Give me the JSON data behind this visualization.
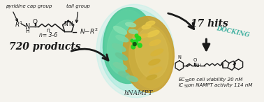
{
  "background_color": "#f5f3ee",
  "left_panel": {
    "pyridine_cap_label": "pyridine cap group",
    "tail_label": "tail group",
    "formula_label": "n= 3-6",
    "products_label": "720 products"
  },
  "center_label": "hNAMPT",
  "right_panel": {
    "hits_label": "17 hits",
    "docking_label": "DOCKING",
    "ec50_label": "EC",
    "ec50_sub": "50",
    "ec50_rest": " on cell viability 20 nM",
    "ic50_label": "IC",
    "ic50_sub": "50",
    "ic50_rest": " on NAMPT activity 114 nM"
  },
  "arrow_color": "#1a1a1a",
  "sketch_color": "#1a1a1a",
  "protein_green_light": "#7ae8d8",
  "protein_green_dark": "#3ab890",
  "protein_yellow_light": "#e8d890",
  "protein_yellow_dark": "#c8a030",
  "protein_bright_green": "#40c840",
  "docking_color": "#40b0a0",
  "fig_width": 3.78,
  "fig_height": 1.46,
  "dpi": 100
}
